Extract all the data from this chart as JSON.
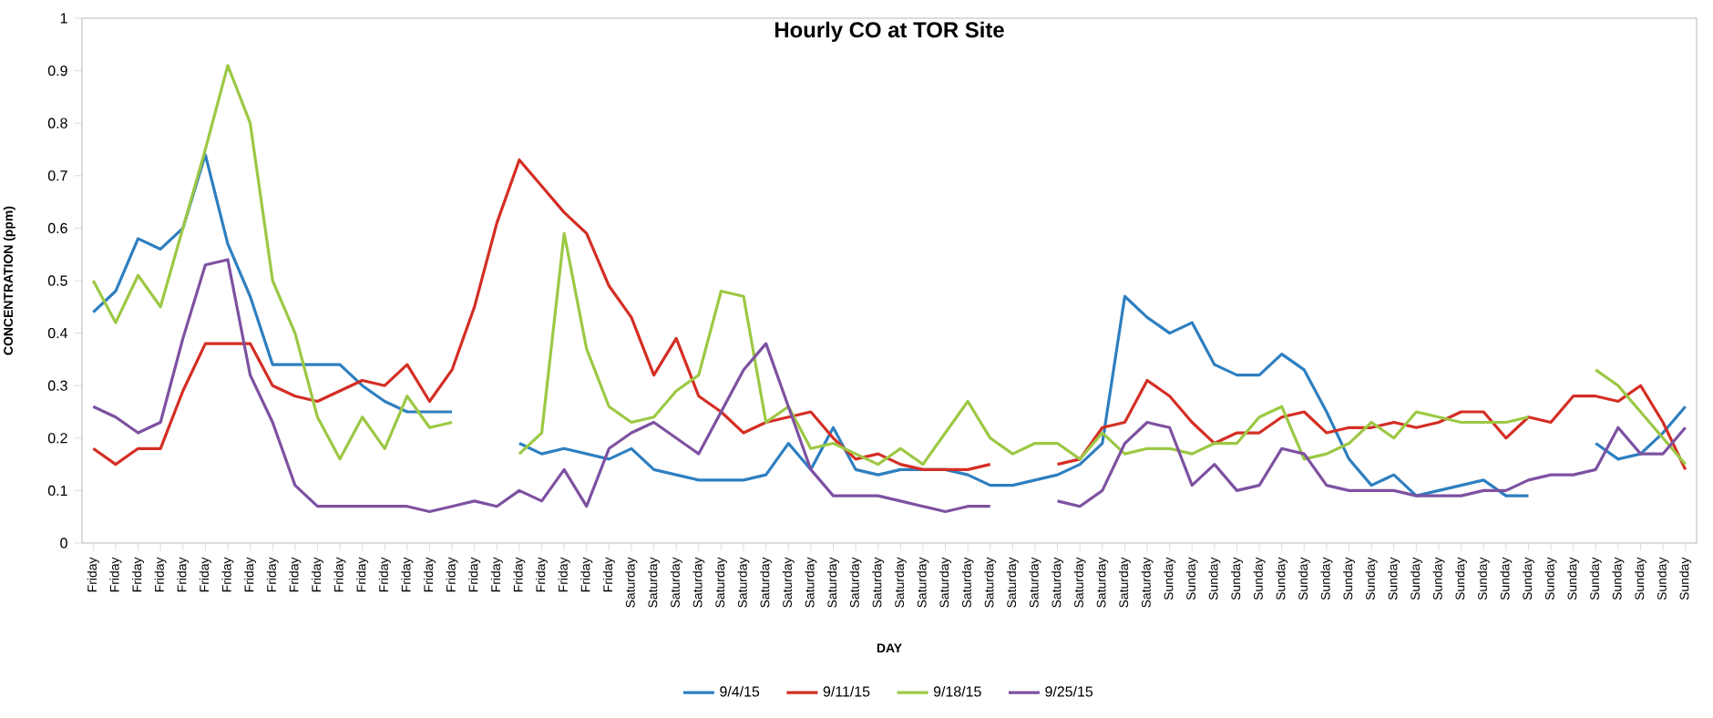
{
  "chart_data": {
    "type": "line",
    "title": "Hourly CO at TOR Site",
    "xlabel": "DAY",
    "ylabel": "CONCENTRATION (ppm)",
    "categories": [
      "Friday",
      "Friday",
      "Friday",
      "Friday",
      "Friday",
      "Friday",
      "Friday",
      "Friday",
      "Friday",
      "Friday",
      "Friday",
      "Friday",
      "Friday",
      "Friday",
      "Friday",
      "Friday",
      "Friday",
      "Friday",
      "Friday",
      "Friday",
      "Friday",
      "Friday",
      "Friday",
      "Friday",
      "Saturday",
      "Saturday",
      "Saturday",
      "Saturday",
      "Saturday",
      "Saturday",
      "Saturday",
      "Saturday",
      "Saturday",
      "Saturday",
      "Saturday",
      "Saturday",
      "Saturday",
      "Saturday",
      "Saturday",
      "Saturday",
      "Saturday",
      "Saturday",
      "Saturday",
      "Saturday",
      "Saturday",
      "Saturday",
      "Saturday",
      "Saturday",
      "Sunday",
      "Sunday",
      "Sunday",
      "Sunday",
      "Sunday",
      "Sunday",
      "Sunday",
      "Sunday",
      "Sunday",
      "Sunday",
      "Sunday",
      "Sunday",
      "Sunday",
      "Sunday",
      "Sunday",
      "Sunday",
      "Sunday",
      "Sunday",
      "Sunday",
      "Sunday",
      "Sunday",
      "Sunday",
      "Sunday",
      "Sunday"
    ],
    "series": [
      {
        "name": "9/4/15",
        "color": "#2e7fc0",
        "values": [
          0.44,
          0.48,
          0.58,
          0.56,
          0.6,
          0.74,
          0.57,
          0.47,
          0.34,
          0.34,
          0.34,
          0.34,
          0.3,
          0.27,
          0.25,
          0.25,
          0.25,
          null,
          null,
          0.19,
          0.17,
          0.18,
          0.17,
          0.16,
          0.18,
          0.14,
          0.13,
          0.12,
          0.12,
          0.12,
          0.13,
          0.19,
          0.14,
          0.22,
          0.14,
          0.13,
          0.14,
          0.14,
          0.14,
          0.13,
          0.11,
          0.11,
          0.12,
          0.13,
          0.15,
          0.19,
          0.47,
          0.43,
          0.4,
          0.42,
          0.34,
          0.32,
          0.32,
          0.36,
          0.33,
          0.25,
          0.16,
          0.11,
          0.13,
          0.09,
          0.1,
          0.11,
          0.12,
          0.09,
          0.09,
          null,
          null,
          0.19,
          0.16,
          0.17,
          0.21,
          0.26
        ]
      },
      {
        "name": "9/11/15",
        "color": "#d42e24",
        "values": [
          0.18,
          0.15,
          0.18,
          0.18,
          0.29,
          0.38,
          0.38,
          0.38,
          0.3,
          0.28,
          0.27,
          0.29,
          0.31,
          0.3,
          0.34,
          0.27,
          0.33,
          0.45,
          0.61,
          0.73,
          0.68,
          0.63,
          0.59,
          0.49,
          0.43,
          0.32,
          0.39,
          0.28,
          0.25,
          0.21,
          0.23,
          0.24,
          0.25,
          0.2,
          0.16,
          0.17,
          0.15,
          0.14,
          0.14,
          0.14,
          0.15,
          null,
          null,
          0.15,
          0.16,
          0.22,
          0.23,
          0.31,
          0.28,
          0.23,
          0.19,
          0.21,
          0.21,
          0.24,
          0.25,
          0.21,
          0.22,
          0.22,
          0.23,
          0.22,
          0.23,
          0.25,
          0.25,
          0.2,
          0.24,
          0.23,
          0.28,
          0.28,
          0.27,
          0.3,
          0.23,
          0.14
        ]
      },
      {
        "name": "9/18/15",
        "color": "#9cc844",
        "values": [
          0.5,
          0.42,
          0.51,
          0.45,
          0.6,
          0.75,
          0.91,
          0.8,
          0.5,
          0.4,
          0.24,
          0.16,
          0.24,
          0.18,
          0.28,
          0.22,
          0.23,
          null,
          null,
          0.17,
          0.21,
          0.59,
          0.37,
          0.26,
          0.23,
          0.24,
          0.29,
          0.32,
          0.48,
          0.47,
          0.23,
          0.26,
          0.18,
          0.19,
          0.17,
          0.15,
          0.18,
          0.15,
          0.21,
          0.27,
          0.2,
          0.17,
          0.19,
          0.19,
          0.16,
          0.21,
          0.17,
          0.18,
          0.18,
          0.17,
          0.19,
          0.19,
          0.24,
          0.26,
          0.16,
          0.17,
          0.19,
          0.23,
          0.2,
          0.25,
          0.24,
          0.23,
          0.23,
          0.23,
          0.24,
          null,
          null,
          0.33,
          0.3,
          0.25,
          0.2,
          0.15
        ]
      },
      {
        "name": "9/25/15",
        "color": "#7d51a1",
        "values": [
          0.26,
          0.24,
          0.21,
          0.23,
          0.39,
          0.53,
          0.54,
          0.32,
          0.23,
          0.11,
          0.07,
          0.07,
          0.07,
          0.07,
          0.07,
          0.06,
          0.07,
          0.08,
          0.07,
          0.1,
          0.08,
          0.14,
          0.07,
          0.18,
          0.21,
          0.23,
          0.2,
          0.17,
          0.25,
          0.33,
          0.38,
          0.26,
          0.14,
          0.09,
          0.09,
          0.09,
          0.08,
          0.07,
          0.06,
          0.07,
          0.07,
          null,
          null,
          0.08,
          0.07,
          0.1,
          0.19,
          0.23,
          0.22,
          0.11,
          0.15,
          0.1,
          0.11,
          0.18,
          0.17,
          0.11,
          0.1,
          0.1,
          0.1,
          0.09,
          0.09,
          0.09,
          0.1,
          0.1,
          0.12,
          0.13,
          0.13,
          0.14,
          0.22,
          0.17,
          0.17,
          0.22
        ]
      }
    ],
    "ylim": [
      0,
      1
    ],
    "yticks": [
      0,
      0.1,
      0.2,
      0.3,
      0.4,
      0.5,
      0.6,
      0.7,
      0.8,
      0.9,
      1
    ],
    "grid": false,
    "legend": "bottom"
  }
}
